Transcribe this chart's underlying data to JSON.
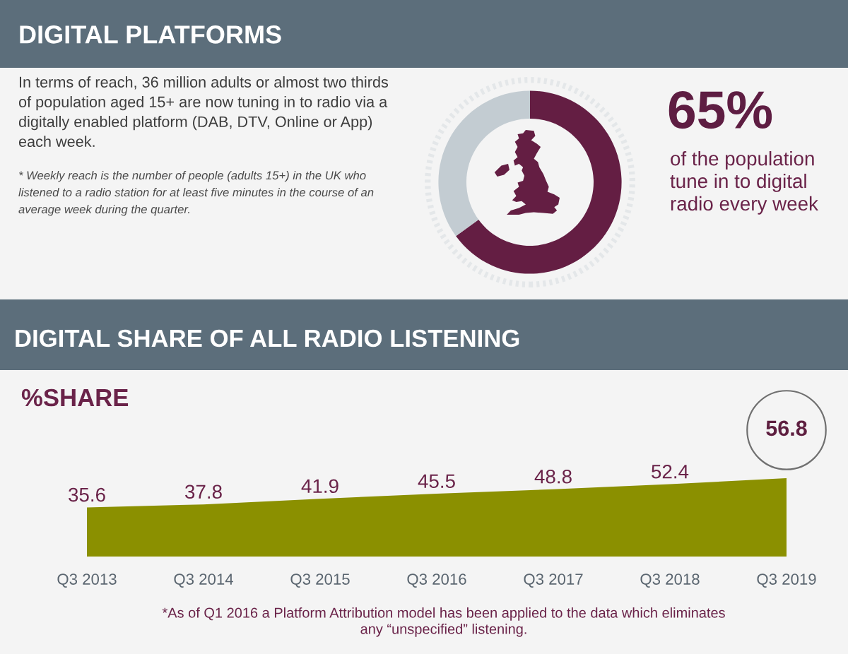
{
  "chart_data": [
    {
      "type": "donut",
      "title": "DIGITAL PLATFORMS",
      "categories": [
        null,
        null
      ],
      "values": [
        65,
        35
      ],
      "colors": [
        "#641e43",
        "#c3ccd2"
      ],
      "annotations": [
        "In terms of reach, 36 million adults or almost two thirds\nof population aged 15+ are now tuning in to radio via a\ndigitally enabled platform (DAB, DTV, Online or App)\neach week.",
        "* Weekly reach is the number of people (adults 15+) in the UK who\nlistened to a radio station for at least five minutes in the course of an\naverage week during the quarter.",
        "65%",
        "of the population\ntune in to digital\nradio every week"
      ]
    },
    {
      "type": "area",
      "title": "DIGITAL SHARE OF ALL RADIO LISTENING",
      "subtitle": "%SHARE",
      "categories": [
        "Q3 2013",
        "Q3 2014",
        "Q3 2015",
        "Q3 2016",
        "Q3 2017",
        "Q3 2018",
        "Q3 2019"
      ],
      "values": [
        35.6,
        37.8,
        41.9,
        45.5,
        48.8,
        52.4,
        56.8
      ],
      "color": "#8b9000",
      "value_labels": [
        "35.6",
        "37.8",
        "41.9",
        "45.5",
        "48.8",
        "52.4",
        null
      ],
      "tick_labels": "x",
      "annotations": [
        {
          "text": "56.8",
          "x": "Q3 2019",
          "y": 56.8
        },
        "*As of Q1 2016 a Platform Attribution model has been applied to the data which eliminates\nany “unspecified” listening."
      ]
    }
  ]
}
